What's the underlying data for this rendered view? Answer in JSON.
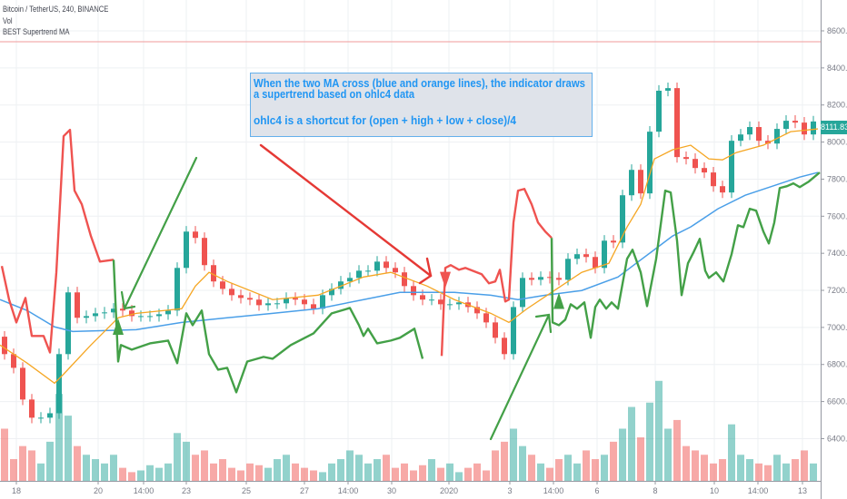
{
  "header": {
    "symbol_line": "Bitcoin / TetherUS, 240, BINANCE",
    "indicator_1": "Vol",
    "indicator_2": "BEST Supertrend MA"
  },
  "last_price": "8111.83",
  "annotation": {
    "line1": "When the two MA cross (blue and orange lines), the indicator draws",
    "line2": "a supertrend based on ohlc4 data",
    "line3": "ohlc4 is a shortcut for (open + high + low + close)/4"
  },
  "colors": {
    "up": "#26a69a",
    "down": "#ef5350",
    "fast_ma": "#f5a623",
    "slow_ma": "#4a9fe8",
    "supertrend_up": "#43a047",
    "supertrend_down": "#ef5350",
    "annotation_text": "#2196f3"
  },
  "chart_data": {
    "type": "candlestick",
    "y_axis": {
      "ticks": [
        8600,
        8400,
        8200,
        8000,
        7800,
        7600,
        7400,
        7200,
        7000,
        6800,
        6600,
        6400
      ],
      "tick_labels": [
        "8600.00",
        "8400.00",
        "8200.00",
        "8000.00",
        "7800.00",
        "7600.00",
        "7400.00",
        "7200.00",
        "7000.00",
        "6800.00",
        "6600.00",
        "6400.00"
      ],
      "position": "right"
    },
    "x_axis": {
      "tick_labels": [
        "18",
        "20",
        "14:00",
        "23",
        "25",
        "27",
        "14:00",
        "30",
        "2020",
        "3",
        "14:00",
        "6",
        "8",
        "10",
        "14:00",
        "13"
      ],
      "tick_bars": [
        1.3,
        10.3,
        15.3,
        20,
        26.6,
        33,
        37.8,
        42.6,
        48.9,
        55.6,
        60.4,
        65.2,
        71.6,
        78.1,
        82.9,
        87.8
      ]
    },
    "grid": true,
    "first_open": 6950,
    "closes": [
      6856,
      6782,
      6611,
      6513,
      6513,
      6537,
      6856,
      7189,
      7052,
      7061,
      7076,
      7081,
      7101,
      7091,
      7061,
      7061,
      7061,
      7071,
      7091,
      7321,
      7517,
      7483,
      7336,
      7248,
      7208,
      7174,
      7159,
      7150,
      7120,
      7130,
      7130,
      7159,
      7150,
      7125,
      7101,
      7174,
      7208,
      7248,
      7267,
      7306,
      7306,
      7355,
      7321,
      7297,
      7223,
      7174,
      7150,
      7150,
      7125,
      7125,
      7135,
      7110,
      7076,
      7027,
      6944,
      6856,
      7110,
      7267,
      7257,
      7272,
      7267,
      7257,
      7370,
      7395,
      7380,
      7321,
      7468,
      7458,
      7713,
      7850,
      7723,
      8056,
      8277,
      8291,
      7919,
      7909,
      7860,
      7836,
      7762,
      7728,
      8007,
      8041,
      8081,
      8007,
      7992,
      8071,
      8115,
      8105,
      8041,
      8111
    ],
    "volume_relative": [
      60,
      25,
      40,
      35,
      20,
      45,
      100,
      75,
      40,
      30,
      25,
      20,
      30,
      15,
      10,
      12,
      18,
      15,
      20,
      55,
      45,
      30,
      35,
      20,
      25,
      15,
      12,
      20,
      18,
      15,
      25,
      30,
      20,
      15,
      12,
      10,
      20,
      25,
      35,
      30,
      20,
      25,
      30,
      15,
      20,
      12,
      18,
      25,
      15,
      20,
      10,
      15,
      20,
      12,
      35,
      45,
      60,
      40,
      30,
      20,
      15,
      25,
      30,
      20,
      35,
      25,
      30,
      45,
      60,
      85,
      50,
      90,
      115,
      60,
      70,
      40,
      35,
      30,
      20,
      25,
      65,
      30,
      25,
      20,
      18,
      30,
      20,
      25,
      35,
      20
    ],
    "fast_ma": [
      [
        -0.5,
        6905
      ],
      [
        2.5,
        6807
      ],
      [
        5.5,
        6699
      ],
      [
        6.5,
        6748
      ],
      [
        9.5,
        6905
      ],
      [
        12.5,
        7052
      ],
      [
        14.5,
        7076
      ],
      [
        19.5,
        7101
      ],
      [
        21,
        7223
      ],
      [
        22.5,
        7297
      ],
      [
        24.5,
        7248
      ],
      [
        29.5,
        7150
      ],
      [
        34.5,
        7174
      ],
      [
        39.5,
        7272
      ],
      [
        42.5,
        7297
      ],
      [
        46.5,
        7223
      ],
      [
        49.5,
        7150
      ],
      [
        53.5,
        7076
      ],
      [
        55.5,
        7027
      ],
      [
        57.5,
        7101
      ],
      [
        60.5,
        7199
      ],
      [
        63.5,
        7297
      ],
      [
        66.5,
        7346
      ],
      [
        68.5,
        7542
      ],
      [
        70,
        7664
      ],
      [
        71.5,
        7909
      ],
      [
        73.5,
        7958
      ],
      [
        75.5,
        7983
      ],
      [
        77.5,
        7909
      ],
      [
        79,
        7904
      ],
      [
        80.5,
        7943
      ],
      [
        83.5,
        7983
      ],
      [
        86.5,
        8056
      ],
      [
        89.5,
        8071
      ]
    ],
    "slow_ma": [
      [
        -0.5,
        7150
      ],
      [
        2.5,
        7091
      ],
      [
        5.5,
        7003
      ],
      [
        7.5,
        6978
      ],
      [
        14.5,
        6988
      ],
      [
        19.5,
        7027
      ],
      [
        24.5,
        7052
      ],
      [
        29.5,
        7076
      ],
      [
        34.5,
        7101
      ],
      [
        39.5,
        7150
      ],
      [
        43.5,
        7189
      ],
      [
        49.5,
        7189
      ],
      [
        53.5,
        7174
      ],
      [
        56.5,
        7150
      ],
      [
        59.5,
        7174
      ],
      [
        63.5,
        7199
      ],
      [
        67.5,
        7272
      ],
      [
        69.5,
        7346
      ],
      [
        71.5,
        7419
      ],
      [
        73.5,
        7493
      ],
      [
        75.5,
        7542
      ],
      [
        78.5,
        7640
      ],
      [
        81.5,
        7713
      ],
      [
        84.5,
        7762
      ],
      [
        87.5,
        7811
      ],
      [
        89.5,
        7836
      ]
    ],
    "supertrend": [
      {
        "trend": "down",
        "points": [
          [
            -0.3,
            7331
          ],
          [
            0.5,
            7150
          ],
          [
            1.3,
            7027
          ],
          [
            2.3,
            7159
          ],
          [
            3,
            6954
          ],
          [
            4.3,
            6954
          ],
          [
            5,
            6865
          ],
          [
            5.7,
            7297
          ],
          [
            6.5,
            8032
          ],
          [
            7.2,
            8066
          ],
          [
            7.7,
            7738
          ],
          [
            8.5,
            7664
          ],
          [
            9.5,
            7493
          ],
          [
            10.5,
            7355
          ],
          [
            12,
            7365
          ]
        ]
      },
      {
        "trend": "up",
        "points": [
          [
            12,
            7365
          ],
          [
            12.5,
            6816
          ],
          [
            12.8,
            6905
          ],
          [
            14,
            6880
          ],
          [
            16,
            6914
          ],
          [
            18,
            6929
          ],
          [
            19,
            6807
          ],
          [
            20,
            7076
          ],
          [
            20.7,
            7012
          ],
          [
            21.7,
            7091
          ],
          [
            22.5,
            6856
          ],
          [
            23.5,
            6772
          ],
          [
            24.5,
            6782
          ],
          [
            25.5,
            6650
          ],
          [
            26.7,
            6816
          ],
          [
            28.5,
            6841
          ],
          [
            29.5,
            6831
          ],
          [
            31.5,
            6905
          ],
          [
            34,
            6968
          ],
          [
            36,
            7076
          ],
          [
            38,
            7105
          ],
          [
            39,
            7012
          ],
          [
            39.5,
            6954
          ],
          [
            40,
            6993
          ],
          [
            41,
            6914
          ],
          [
            42.5,
            6929
          ],
          [
            43.5,
            6944
          ],
          [
            45.1,
            6993
          ],
          [
            46,
            6831
          ]
        ]
      },
      {
        "trend": "down",
        "points": [
          [
            48.1,
            6846
          ],
          [
            48.5,
            7321
          ],
          [
            49.1,
            7336
          ],
          [
            50,
            7311
          ],
          [
            50.7,
            7321
          ],
          [
            51.5,
            7306
          ],
          [
            52.5,
            7287
          ],
          [
            53.3,
            7238
          ],
          [
            54,
            7248
          ],
          [
            54.5,
            7311
          ],
          [
            55.1,
            7140
          ],
          [
            55.5,
            7150
          ],
          [
            56,
            7566
          ],
          [
            56.5,
            7738
          ],
          [
            57.2,
            7747
          ],
          [
            58,
            7664
          ],
          [
            58.7,
            7566
          ],
          [
            59.5,
            7517
          ],
          [
            60.2,
            7483
          ]
        ]
      },
      {
        "trend": "up",
        "points": [
          [
            60.2,
            7483
          ],
          [
            60.3,
            7027
          ],
          [
            61,
            7012
          ],
          [
            61.7,
            7042
          ],
          [
            62.3,
            7125
          ],
          [
            63,
            7101
          ],
          [
            63.8,
            7135
          ],
          [
            64.5,
            6944
          ],
          [
            65,
            7110
          ],
          [
            65.5,
            7150
          ],
          [
            66.2,
            7101
          ],
          [
            66.8,
            7135
          ],
          [
            67.5,
            7101
          ],
          [
            68.5,
            7370
          ],
          [
            69.1,
            7419
          ],
          [
            70,
            7297
          ],
          [
            70.7,
            7115
          ],
          [
            71.7,
            7370
          ],
          [
            72.7,
            7738
          ],
          [
            73.3,
            7728
          ],
          [
            74,
            7468
          ],
          [
            74.5,
            7174
          ],
          [
            75.2,
            7346
          ],
          [
            75.8,
            7404
          ],
          [
            76.5,
            7478
          ],
          [
            77.1,
            7306
          ],
          [
            77.5,
            7267
          ],
          [
            78.3,
            7297
          ],
          [
            79.1,
            7248
          ],
          [
            80,
            7395
          ],
          [
            80.7,
            7551
          ],
          [
            81.3,
            7541
          ],
          [
            82,
            7640
          ],
          [
            82.7,
            7630
          ],
          [
            83.5,
            7517
          ],
          [
            84.1,
            7453
          ],
          [
            84.7,
            7566
          ],
          [
            85.3,
            7752
          ],
          [
            86.1,
            7762
          ],
          [
            86.8,
            7777
          ],
          [
            87.5,
            7757
          ],
          [
            88.5,
            7787
          ],
          [
            89.7,
            7836
          ]
        ]
      }
    ],
    "signals": [
      {
        "type": "buy",
        "bar": 12.5,
        "price": 6960
      },
      {
        "type": "sell",
        "bar": 48.5,
        "price": 7300
      },
      {
        "type": "buy",
        "bar": 61,
        "price": 7100
      }
    ]
  }
}
